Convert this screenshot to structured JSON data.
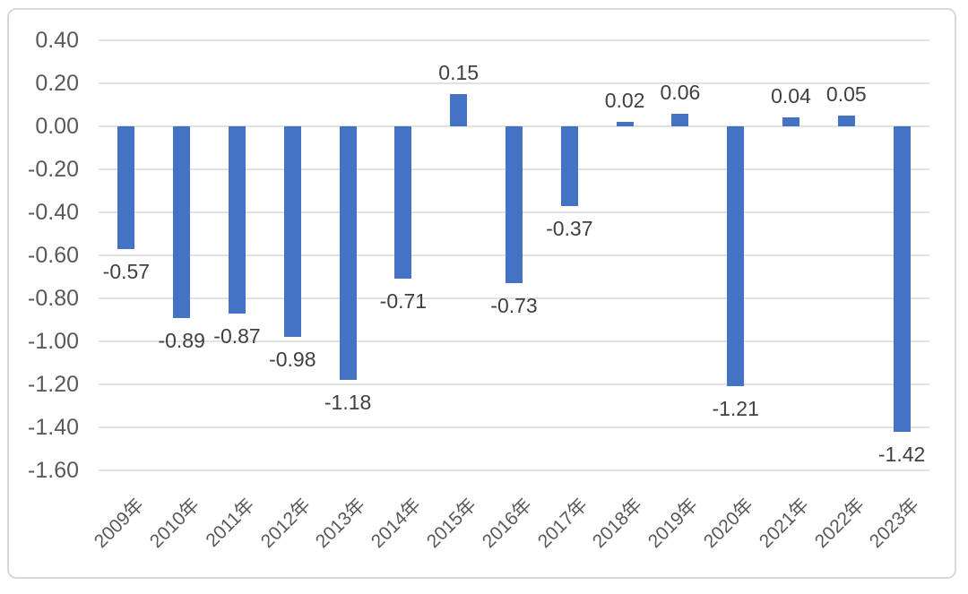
{
  "chart_data": {
    "type": "bar",
    "title": "",
    "xlabel": "",
    "ylabel": "",
    "categories": [
      "2009年",
      "2010年",
      "2011年",
      "2012年",
      "2013年",
      "2014年",
      "2015年",
      "2016年",
      "2017年",
      "2018年",
      "2019年",
      "2020年",
      "2021年",
      "2022年",
      "2023年"
    ],
    "values": [
      -0.57,
      -0.89,
      -0.87,
      -0.98,
      -1.18,
      -0.71,
      0.15,
      -0.73,
      -0.37,
      0.02,
      0.06,
      -1.21,
      0.04,
      0.05,
      -1.42
    ],
    "data_labels": [
      "-0.57",
      "-0.89",
      "-0.87",
      "-0.98",
      "-1.18",
      "-0.71",
      "0.15",
      "-0.73",
      "-0.37",
      "0.02",
      "0.06",
      "-1.21",
      "0.04",
      "0.05",
      "-1.42"
    ],
    "y_tick_labels": [
      "0.40",
      "0.20",
      "0.00",
      "-0.20",
      "-0.40",
      "-0.60",
      "-0.80",
      "-1.00",
      "-1.20",
      "-1.40",
      "-1.60"
    ],
    "ylim": [
      -1.6,
      0.4
    ],
    "ytick_step": 0.2,
    "grid": true,
    "legend_position": "none",
    "data_label_position": "outside-end",
    "colors": {
      "bar": "#4472c4",
      "gridline": "#e2e2e2",
      "axis_text": "#595959",
      "data_label_text": "#404040",
      "frame_border": "#d8d8d8",
      "background": "#ffffff"
    }
  }
}
